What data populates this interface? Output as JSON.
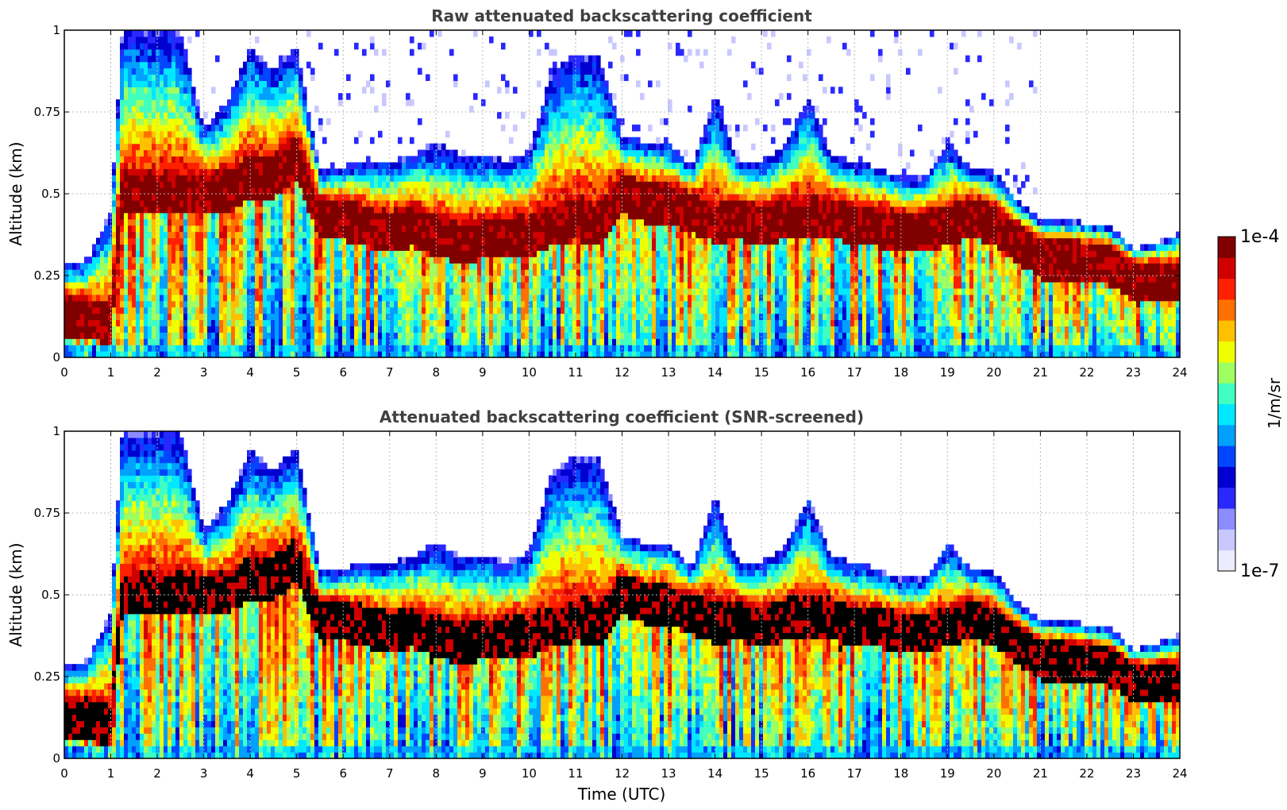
{
  "chart_data": [
    {
      "type": "heatmap",
      "title": "Raw attenuated backscattering coefficient",
      "xlabel": "",
      "ylabel": "Altitude (km)",
      "xlim": [
        0,
        24
      ],
      "ylim": [
        0,
        1
      ],
      "x_ticks": [
        "0",
        "1",
        "2",
        "3",
        "4",
        "5",
        "6",
        "7",
        "8",
        "9",
        "10",
        "11",
        "12",
        "13",
        "14",
        "15",
        "16",
        "17",
        "18",
        "19",
        "20",
        "21",
        "22",
        "23",
        "24"
      ],
      "y_ticks": [
        "0",
        "0.25",
        "0.5",
        "0.75",
        "1"
      ],
      "grid": true,
      "colormap": "jet",
      "color_scale": "log",
      "x": [
        0,
        0.5,
        1,
        1.25,
        1.5,
        2,
        2.5,
        3,
        3.5,
        4,
        4.5,
        5,
        5.5,
        6,
        6.5,
        7,
        7.5,
        8,
        8.5,
        9,
        9.5,
        10,
        10.5,
        11,
        11.5,
        12,
        12.5,
        13,
        13.5,
        14,
        14.5,
        15,
        15.5,
        16,
        16.5,
        17,
        17.5,
        18,
        18.5,
        19,
        19.5,
        20,
        20.5,
        21,
        21.5,
        22,
        22.5,
        23,
        23.5,
        24
      ],
      "layer_center_km": [
        0.12,
        0.12,
        0.1,
        0.5,
        0.5,
        0.5,
        0.5,
        0.5,
        0.5,
        0.55,
        0.55,
        0.6,
        0.42,
        0.42,
        0.4,
        0.38,
        0.4,
        0.37,
        0.35,
        0.36,
        0.37,
        0.37,
        0.4,
        0.42,
        0.4,
        0.5,
        0.47,
        0.47,
        0.44,
        0.41,
        0.42,
        0.4,
        0.42,
        0.43,
        0.43,
        0.4,
        0.4,
        0.38,
        0.38,
        0.4,
        0.43,
        0.4,
        0.35,
        0.3,
        0.3,
        0.29,
        0.28,
        0.23,
        0.23,
        0.23
      ],
      "layer_top_km": [
        0.28,
        0.3,
        0.45,
        1,
        1,
        1,
        1,
        0.7,
        0.78,
        0.95,
        0.88,
        0.95,
        0.57,
        0.58,
        0.6,
        0.6,
        0.62,
        0.66,
        0.62,
        0.62,
        0.6,
        0.63,
        0.88,
        0.93,
        0.93,
        0.68,
        0.66,
        0.66,
        0.58,
        0.8,
        0.6,
        0.6,
        0.65,
        0.8,
        0.62,
        0.6,
        0.58,
        0.55,
        0.55,
        0.66,
        0.58,
        0.57,
        0.48,
        0.42,
        0.42,
        0.41,
        0.4,
        0.33,
        0.35,
        0.38
      ]
    },
    {
      "type": "heatmap",
      "title": "Attenuated backscattering coefficient (SNR-screened)",
      "xlabel": "Time (UTC)",
      "ylabel": "Altitude (km)",
      "xlim": [
        0,
        24
      ],
      "ylim": [
        0,
        1
      ],
      "x_ticks": [
        "0",
        "1",
        "2",
        "3",
        "4",
        "5",
        "6",
        "7",
        "8",
        "9",
        "10",
        "11",
        "12",
        "13",
        "14",
        "15",
        "16",
        "17",
        "18",
        "19",
        "20",
        "21",
        "22",
        "23",
        "24"
      ],
      "y_ticks": [
        "0",
        "0.25",
        "0.5",
        "0.75",
        "1"
      ],
      "grid": true,
      "colormap": "jet",
      "color_scale": "log",
      "note_saturated": "black",
      "x": [
        0,
        0.5,
        1,
        1.25,
        1.5,
        2,
        2.5,
        3,
        3.5,
        4,
        4.5,
        5,
        5.5,
        6,
        6.5,
        7,
        7.5,
        8,
        8.5,
        9,
        9.5,
        10,
        10.5,
        11,
        11.5,
        12,
        12.5,
        13,
        13.5,
        14,
        14.5,
        15,
        15.5,
        16,
        16.5,
        17,
        17.5,
        18,
        18.5,
        19,
        19.5,
        20,
        20.5,
        21,
        21.5,
        22,
        22.5,
        23,
        23.5,
        24
      ],
      "layer_center_km": [
        0.12,
        0.12,
        0.1,
        0.5,
        0.5,
        0.5,
        0.5,
        0.5,
        0.5,
        0.55,
        0.55,
        0.6,
        0.42,
        0.42,
        0.4,
        0.38,
        0.4,
        0.37,
        0.35,
        0.36,
        0.37,
        0.37,
        0.4,
        0.42,
        0.4,
        0.5,
        0.47,
        0.47,
        0.44,
        0.41,
        0.42,
        0.4,
        0.42,
        0.43,
        0.43,
        0.4,
        0.4,
        0.38,
        0.38,
        0.4,
        0.43,
        0.4,
        0.35,
        0.3,
        0.3,
        0.29,
        0.28,
        0.23,
        0.23,
        0.23
      ],
      "layer_top_km": [
        0.28,
        0.3,
        0.45,
        1,
        1,
        1,
        1,
        0.7,
        0.78,
        0.95,
        0.88,
        0.95,
        0.57,
        0.58,
        0.6,
        0.6,
        0.62,
        0.66,
        0.62,
        0.62,
        0.6,
        0.63,
        0.88,
        0.93,
        0.93,
        0.68,
        0.66,
        0.66,
        0.58,
        0.8,
        0.6,
        0.6,
        0.65,
        0.8,
        0.62,
        0.6,
        0.58,
        0.55,
        0.55,
        0.66,
        0.58,
        0.57,
        0.48,
        0.42,
        0.42,
        0.41,
        0.4,
        0.33,
        0.35,
        0.38
      ]
    }
  ],
  "colorbar": {
    "label": "1/m/sr",
    "max_label": "1e-4",
    "min_label": "1e-7",
    "colors": [
      "#ececff",
      "#c8c8ff",
      "#8c8cff",
      "#2828ff",
      "#0000d0",
      "#0046ff",
      "#00a0ff",
      "#00e8ff",
      "#40ffc0",
      "#a0ff60",
      "#f0ff00",
      "#ffc000",
      "#ff7000",
      "#ff2000",
      "#d00000",
      "#800000"
    ]
  }
}
